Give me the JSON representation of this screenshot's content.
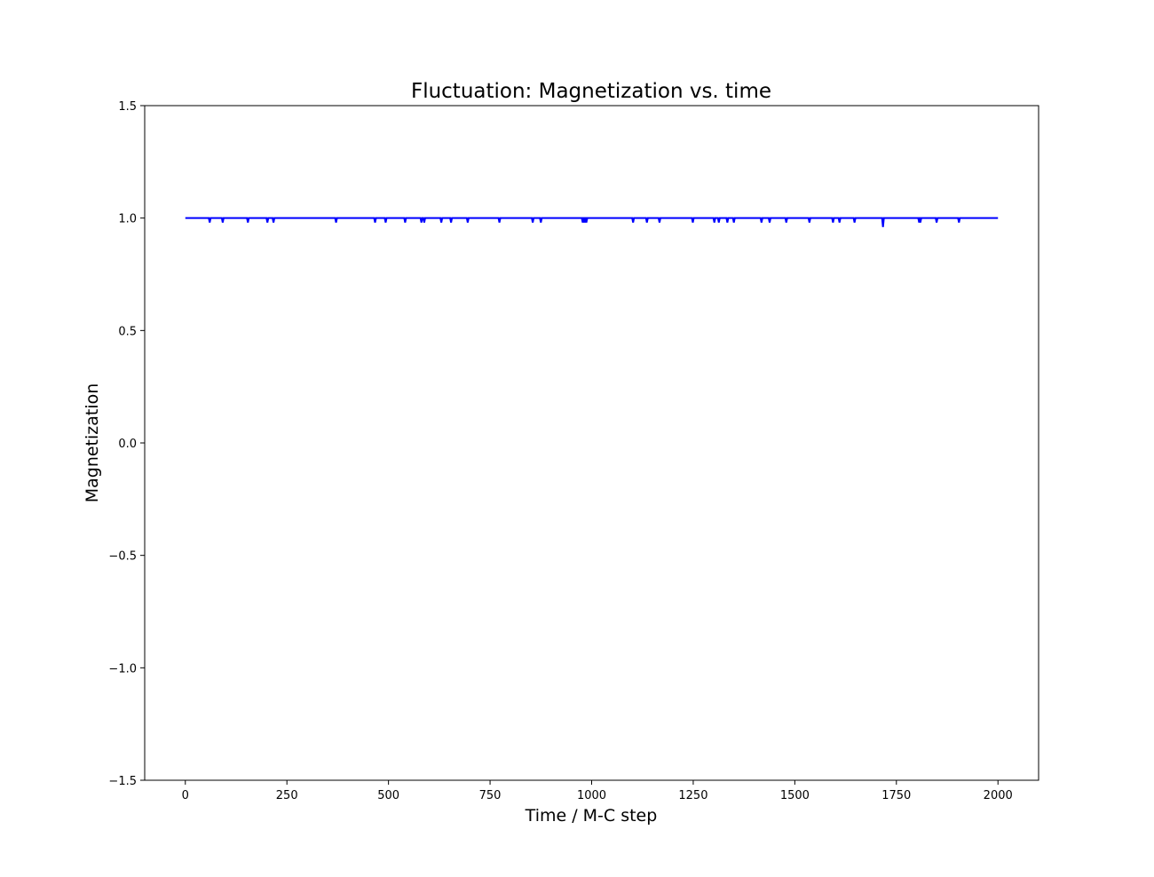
{
  "chart_data": {
    "type": "line",
    "title": "Fluctuation: Magnetization vs. time",
    "xlabel": "Time / M-C step",
    "ylabel": "Magnetization",
    "xlim": [
      -100,
      2100
    ],
    "ylim": [
      -1.5,
      1.5
    ],
    "xticks": [
      0,
      250,
      500,
      750,
      1000,
      1250,
      1500,
      1750,
      2000
    ],
    "xtick_labels": [
      "0",
      "250",
      "500",
      "750",
      "1000",
      "1250",
      "1500",
      "1750",
      "2000"
    ],
    "yticks": [
      -1.5,
      -1.0,
      -0.5,
      0.0,
      0.5,
      1.0,
      1.5
    ],
    "ytick_labels": [
      "−1.5",
      "−1.0",
      "−0.5",
      "0.0",
      "0.5",
      "1.0",
      "1.5"
    ],
    "grid": false,
    "series_color": "#0000ff",
    "x_range": [
      0,
      2000
    ],
    "baseline": 1.0,
    "dips": [
      {
        "x": 60,
        "y": 0.98
      },
      {
        "x": 92,
        "y": 0.98
      },
      {
        "x": 154,
        "y": 0.98
      },
      {
        "x": 202,
        "y": 0.98
      },
      {
        "x": 217,
        "y": 0.98
      },
      {
        "x": 371,
        "y": 0.98
      },
      {
        "x": 467,
        "y": 0.98
      },
      {
        "x": 493,
        "y": 0.98
      },
      {
        "x": 541,
        "y": 0.98
      },
      {
        "x": 581,
        "y": 0.98
      },
      {
        "x": 588,
        "y": 0.98
      },
      {
        "x": 630,
        "y": 0.98
      },
      {
        "x": 654,
        "y": 0.98
      },
      {
        "x": 695,
        "y": 0.98
      },
      {
        "x": 773,
        "y": 0.98
      },
      {
        "x": 855,
        "y": 0.98
      },
      {
        "x": 875,
        "y": 0.98
      },
      {
        "x": 978,
        "y": 0.98
      },
      {
        "x": 981,
        "y": 0.98
      },
      {
        "x": 984,
        "y": 0.98
      },
      {
        "x": 987,
        "y": 0.98
      },
      {
        "x": 1102,
        "y": 0.98
      },
      {
        "x": 1136,
        "y": 0.98
      },
      {
        "x": 1167,
        "y": 0.98
      },
      {
        "x": 1249,
        "y": 0.98
      },
      {
        "x": 1302,
        "y": 0.98
      },
      {
        "x": 1313,
        "y": 0.98
      },
      {
        "x": 1334,
        "y": 0.98
      },
      {
        "x": 1350,
        "y": 0.98
      },
      {
        "x": 1418,
        "y": 0.98
      },
      {
        "x": 1438,
        "y": 0.98
      },
      {
        "x": 1479,
        "y": 0.98
      },
      {
        "x": 1536,
        "y": 0.98
      },
      {
        "x": 1594,
        "y": 0.98
      },
      {
        "x": 1610,
        "y": 0.98
      },
      {
        "x": 1647,
        "y": 0.98
      },
      {
        "x": 1717,
        "y": 0.96
      },
      {
        "x": 1806,
        "y": 0.98
      },
      {
        "x": 1809,
        "y": 0.98
      },
      {
        "x": 1849,
        "y": 0.98
      },
      {
        "x": 1904,
        "y": 0.98
      }
    ]
  }
}
